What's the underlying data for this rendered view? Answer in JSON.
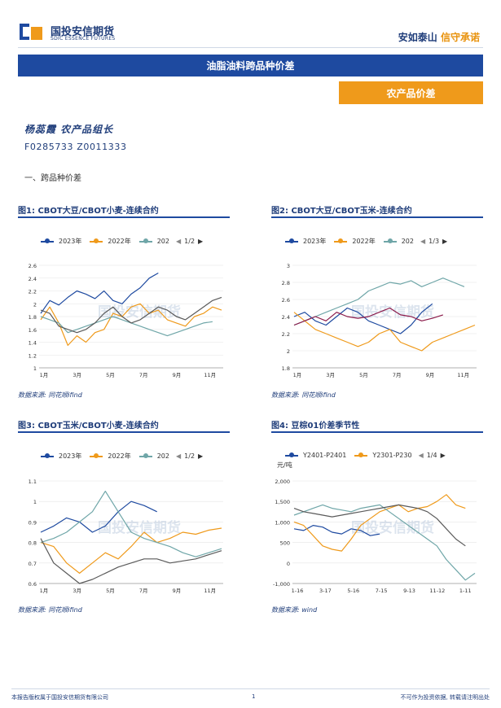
{
  "header": {
    "logo_cn": "国投安信期货",
    "logo_en": "SDIC ESSENCE FUTURES",
    "slogan_a": "安如泰山",
    "slogan_b": "信守承诺"
  },
  "title": "油脂油料跨品种价差",
  "tag": "农产品价差",
  "author": "杨蕊霞  农产品组长",
  "cert": "F0285733  Z0011333",
  "section": "一、跨品种价差",
  "watermark": "国投安信期货",
  "figures": [
    {
      "title": "图1: CBOT大豆/CBOT小麦-连续合约",
      "source": "数据来源: 同花顺ifind",
      "legend": [
        {
          "label": "2023年",
          "color": "#1e4aa0"
        },
        {
          "label": "2022年",
          "color": "#ef9a1b"
        },
        {
          "label": "202",
          "color": "#6fa6a8"
        }
      ],
      "page": "1/2"
    },
    {
      "title": "图2: CBOT大豆/CBOT玉米-连续合约",
      "source": "数据来源: 同花顺ifind",
      "legend": [
        {
          "label": "2023年",
          "color": "#1e4aa0"
        },
        {
          "label": "2022年",
          "color": "#ef9a1b"
        },
        {
          "label": "202",
          "color": "#6fa6a8"
        }
      ],
      "page": "1/3"
    },
    {
      "title": "图3: CBOT玉米/CBOT小麦-连续合约",
      "source": "数据来源: 同花顺ifind",
      "legend": [
        {
          "label": "2023年",
          "color": "#1e4aa0"
        },
        {
          "label": "2022年",
          "color": "#ef9a1b"
        },
        {
          "label": "202",
          "color": "#6fa6a8"
        }
      ],
      "page": "1/2"
    },
    {
      "title": "图4: 豆棕01价差季节性",
      "source": "数据来源: wind",
      "legend": [
        {
          "label": "Y2401-P2401",
          "color": "#1e4aa0"
        },
        {
          "label": "Y2301-P230",
          "color": "#ef9a1b"
        }
      ],
      "page": "1/4",
      "unit": "元/吨"
    }
  ],
  "footer": {
    "left": "本报告版权属于国投安信期货有限公司",
    "page": "1",
    "right": "不可作为投资依据, 转载请注明出处"
  },
  "chart_data": [
    {
      "type": "line",
      "title": "图1: CBOT大豆/CBOT小麦-连续合约",
      "x_ticks": [
        "1月",
        "3月",
        "5月",
        "7月",
        "9月",
        "11月"
      ],
      "ylim": [
        1.0,
        2.6
      ],
      "y_ticks": [
        "1",
        "1.2",
        "1.4",
        "1.6",
        "1.8",
        "2",
        "2.2",
        "2.4",
        "2.6"
      ],
      "series": [
        {
          "name": "2023年",
          "color": "#1e4aa0",
          "values": [
            1.85,
            2.05,
            1.98,
            2.1,
            2.2,
            2.15,
            2.08,
            2.2,
            2.05,
            2.0,
            2.15,
            2.25,
            2.4,
            2.48
          ]
        },
        {
          "name": "2022年",
          "color": "#ef9a1b",
          "values": [
            1.75,
            1.95,
            1.7,
            1.35,
            1.5,
            1.4,
            1.55,
            1.6,
            1.85,
            1.8,
            1.95,
            2.0,
            1.85,
            1.9,
            1.75,
            1.7,
            1.65,
            1.8,
            1.85,
            1.95,
            1.9
          ]
        },
        {
          "name": "202",
          "color": "#6fa6a8",
          "values": [
            1.8,
            1.75,
            1.7,
            1.55,
            1.6,
            1.65,
            1.7,
            1.75,
            1.8,
            1.75,
            1.7,
            1.65,
            1.6,
            1.55,
            1.5,
            1.55,
            1.6,
            1.65,
            1.7,
            1.72
          ]
        },
        {
          "name": "",
          "color": "#5a5a5a",
          "values": [
            1.9,
            1.85,
            1.65,
            1.6,
            1.55,
            1.6,
            1.7,
            1.85,
            1.95,
            1.8,
            1.7,
            1.75,
            1.85,
            1.95,
            1.9,
            1.8,
            1.75,
            1.85,
            1.95,
            2.05,
            2.1
          ]
        }
      ]
    },
    {
      "type": "line",
      "title": "图2: CBOT大豆/CBOT玉米-连续合约",
      "x_ticks": [
        "1月",
        "3月",
        "5月",
        "7月",
        "9月",
        "11月"
      ],
      "ylim": [
        1.8,
        3.0
      ],
      "y_ticks": [
        "1.8",
        "2",
        "2.2",
        "2.4",
        "2.6",
        "2.8",
        "3"
      ],
      "series": [
        {
          "name": "2023年",
          "color": "#1e4aa0",
          "values": [
            2.4,
            2.45,
            2.35,
            2.3,
            2.4,
            2.5,
            2.45,
            2.35,
            2.3,
            2.25,
            2.2,
            2.3,
            2.45,
            2.55
          ]
        },
        {
          "name": "2022年",
          "color": "#ef9a1b",
          "values": [
            2.45,
            2.35,
            2.25,
            2.2,
            2.15,
            2.1,
            2.05,
            2.1,
            2.2,
            2.25,
            2.1,
            2.05,
            2.0,
            2.1,
            2.15,
            2.2,
            2.25,
            2.3
          ]
        },
        {
          "name": "202",
          "color": "#6fa6a8",
          "values": [
            2.3,
            2.35,
            2.4,
            2.45,
            2.5,
            2.55,
            2.6,
            2.7,
            2.75,
            2.8,
            2.78,
            2.82,
            2.75,
            2.8,
            2.85,
            2.8,
            2.75
          ]
        },
        {
          "name": "",
          "color": "#8b1a4a",
          "values": [
            2.3,
            2.35,
            2.4,
            2.35,
            2.45,
            2.4,
            2.38,
            2.4,
            2.45,
            2.5,
            2.42,
            2.4,
            2.35,
            2.38,
            2.42
          ]
        }
      ]
    },
    {
      "type": "line",
      "title": "图3: CBOT玉米/CBOT小麦-连续合约",
      "x_ticks": [
        "1月",
        "3月",
        "5月",
        "7月",
        "9月",
        "11月"
      ],
      "ylim": [
        0.6,
        1.1
      ],
      "y_ticks": [
        "0.6",
        "0.7",
        "0.8",
        "0.9",
        "1",
        "1.1"
      ],
      "series": [
        {
          "name": "2023年",
          "color": "#1e4aa0",
          "values": [
            0.85,
            0.88,
            0.92,
            0.9,
            0.85,
            0.88,
            0.95,
            1.0,
            0.98,
            0.95
          ]
        },
        {
          "name": "2022年",
          "color": "#ef9a1b",
          "values": [
            0.8,
            0.78,
            0.7,
            0.65,
            0.7,
            0.75,
            0.72,
            0.78,
            0.85,
            0.8,
            0.82,
            0.85,
            0.84,
            0.86,
            0.87
          ]
        },
        {
          "name": "202",
          "color": "#6fa6a8",
          "values": [
            0.8,
            0.82,
            0.85,
            0.9,
            0.95,
            1.05,
            0.95,
            0.85,
            0.82,
            0.8,
            0.78,
            0.75,
            0.73,
            0.75,
            0.77
          ]
        },
        {
          "name": "",
          "color": "#5a5a5a",
          "values": [
            0.82,
            0.7,
            0.65,
            0.6,
            0.62,
            0.65,
            0.68,
            0.7,
            0.72,
            0.72,
            0.7,
            0.71,
            0.72,
            0.74,
            0.76
          ]
        }
      ]
    },
    {
      "type": "line",
      "title": "图4: 豆棕01价差季节性",
      "x_ticks": [
        "1-16",
        "3-17",
        "5-16",
        "7-15",
        "9-13",
        "11-12",
        "1-11"
      ],
      "ylim": [
        -1000,
        2000
      ],
      "y_ticks": [
        "-1,000",
        "0",
        "500",
        "1,000",
        "1,500",
        "2,000"
      ],
      "ylabel": "元/吨",
      "series": [
        {
          "name": "Y2401-P2401",
          "color": "#1e4aa0",
          "values": [
            600,
            550,
            700,
            650,
            500,
            450,
            600,
            550,
            400,
            450
          ]
        },
        {
          "name": "Y2301-P230",
          "color": "#ef9a1b",
          "values": [
            800,
            700,
            400,
            100,
            0,
            -50,
            300,
            700,
            900,
            1100,
            1200,
            1300,
            1100,
            1200,
            1250,
            1400,
            1600,
            1300,
            1200
          ]
        },
        {
          "name": "",
          "color": "#6fa6a8",
          "values": [
            1000,
            1100,
            1200,
            1300,
            1200,
            1150,
            1100,
            1200,
            1250,
            1300,
            1100,
            900,
            700,
            500,
            300,
            100,
            -300,
            -600,
            -900,
            -700
          ]
        },
        {
          "name": "",
          "color": "#5a5a5a",
          "values": [
            1200,
            1100,
            1050,
            1000,
            950,
            1000,
            1050,
            1100,
            1150,
            1200,
            1250,
            1300,
            1250,
            1200,
            1100,
            900,
            600,
            300,
            100
          ]
        }
      ]
    }
  ]
}
